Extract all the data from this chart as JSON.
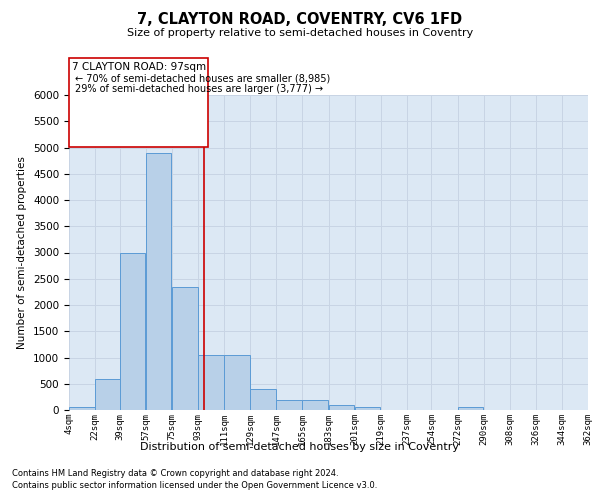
{
  "title": "7, CLAYTON ROAD, COVENTRY, CV6 1FD",
  "subtitle": "Size of property relative to semi-detached houses in Coventry",
  "xlabel": "Distribution of semi-detached houses by size in Coventry",
  "ylabel": "Number of semi-detached properties",
  "footnote1": "Contains HM Land Registry data © Crown copyright and database right 2024.",
  "footnote2": "Contains public sector information licensed under the Open Government Licence v3.0.",
  "annotation_title": "7 CLAYTON ROAD: 97sqm",
  "annotation_line1": "← 70% of semi-detached houses are smaller (8,985)",
  "annotation_line2": "29% of semi-detached houses are larger (3,777) →",
  "property_size": 97,
  "bin_starts": [
    4,
    22,
    39,
    57,
    75,
    93,
    111,
    129,
    147,
    165,
    183,
    201,
    219,
    237,
    254,
    272,
    290,
    308,
    326,
    344
  ],
  "bin_labels": [
    "4sqm",
    "22sqm",
    "39sqm",
    "57sqm",
    "75sqm",
    "93sqm",
    "111sqm",
    "129sqm",
    "147sqm",
    "165sqm",
    "183sqm",
    "201sqm",
    "219sqm",
    "237sqm",
    "254sqm",
    "272sqm",
    "290sqm",
    "308sqm",
    "326sqm",
    "344sqm",
    "362sqm"
  ],
  "bar_heights": [
    60,
    590,
    3000,
    4900,
    2350,
    1050,
    1050,
    400,
    200,
    200,
    90,
    50,
    0,
    0,
    0,
    50,
    0,
    0,
    0,
    0
  ],
  "bar_color": "#b8d0e8",
  "bar_edge_color": "#5b9bd5",
  "vline_color": "#cc0000",
  "box_edge_color": "#cc0000",
  "box_face_color": "#ffffff",
  "grid_color": "#c8d4e4",
  "background_color": "#dce8f4",
  "ylim": [
    0,
    6000
  ],
  "yticks": [
    0,
    500,
    1000,
    1500,
    2000,
    2500,
    3000,
    3500,
    4000,
    4500,
    5000,
    5500,
    6000
  ]
}
